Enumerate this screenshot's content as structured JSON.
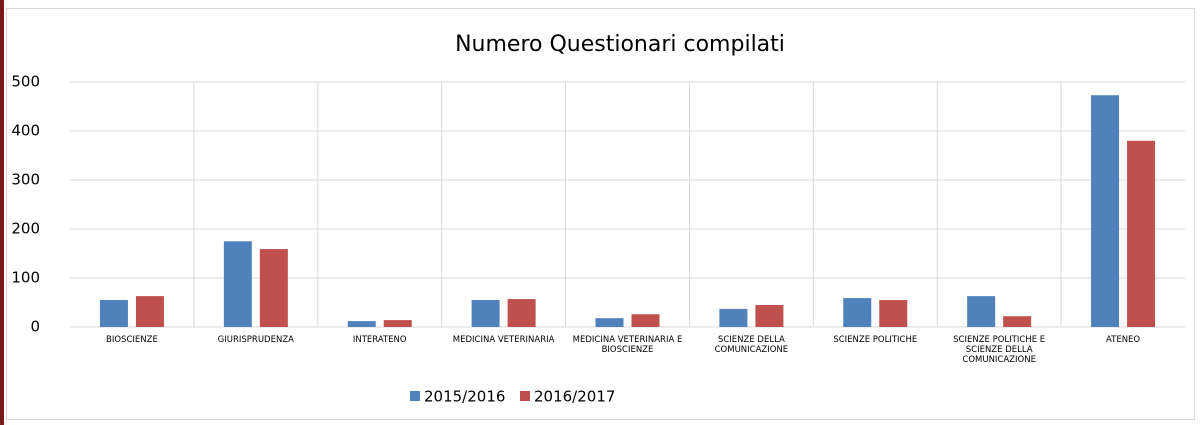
{
  "chart_data": {
    "type": "bar",
    "title": "Numero Questionari compilati",
    "categories": [
      "BIOSCIENZE",
      "GIURISPRUDENZA",
      "INTERATENO",
      "MEDICINA VETERINARIA",
      "MEDICINA VETERINARIA E BIOSCIENZE",
      "SCIENZE DELLA COMUNICAZIONE",
      "SCIENZE POLITICHE",
      "SCIENZE POLITICHE E SCIENZE DELLA COMUNICAZIONE",
      "ATENEO"
    ],
    "series": [
      {
        "name": "2015/2016",
        "color": "#4f81bd",
        "values": [
          55,
          175,
          12,
          55,
          18,
          37,
          59,
          63,
          473
        ]
      },
      {
        "name": "2016/2017",
        "color": "#c0504d",
        "values": [
          63,
          159,
          14,
          57,
          26,
          45,
          55,
          22,
          380
        ]
      }
    ],
    "ylim": [
      0,
      500
    ],
    "yticks": [
      0,
      100,
      200,
      300,
      400,
      500
    ],
    "grid": true,
    "legend": "bottom"
  }
}
